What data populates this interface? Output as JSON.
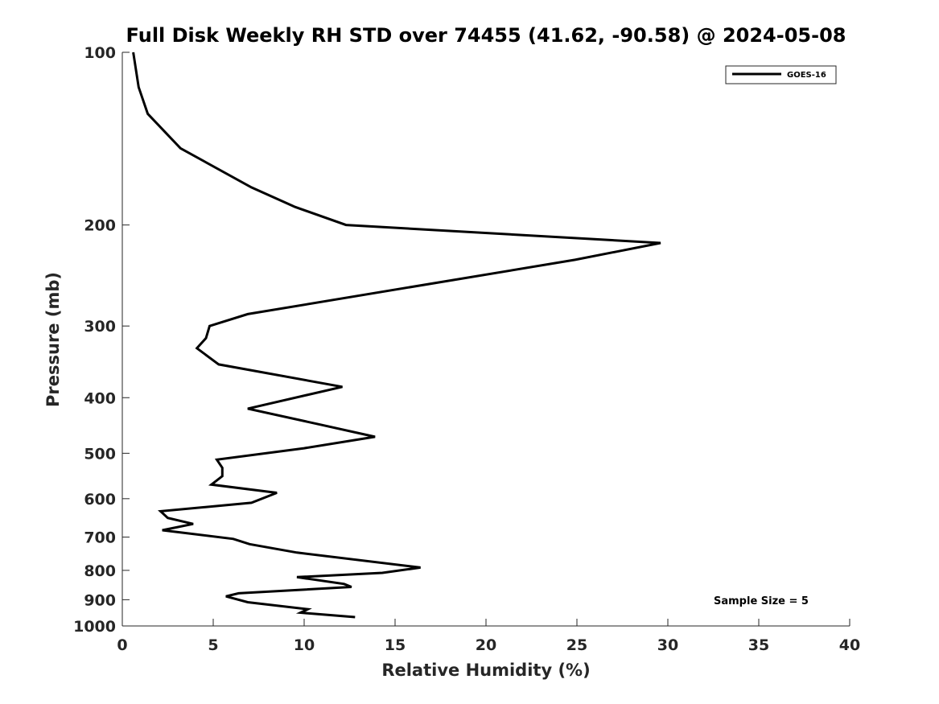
{
  "chart_data": {
    "type": "line",
    "title": "Full Disk Weekly RH STD over 74455 (41.62, -90.58) @ 2024-05-08",
    "xlabel": "Relative Humidity (%)",
    "ylabel": "Pressure (mb)",
    "xlim": [
      0,
      40
    ],
    "ylim": [
      1000,
      100
    ],
    "yscale": "log",
    "x_ticks": [
      "0",
      "5",
      "10",
      "15",
      "20",
      "25",
      "30",
      "35",
      "40"
    ],
    "y_ticks": [
      "100",
      "200",
      "300",
      "400",
      "500",
      "600",
      "700",
      "800",
      "900",
      "1000"
    ],
    "grid": false,
    "legend_position": "top-right",
    "annotation": "Sample Size = 5",
    "series": [
      {
        "name": "GOES-16",
        "color": "#000000",
        "points": [
          [
            0.6,
            100
          ],
          [
            0.9,
            115
          ],
          [
            1.4,
            128
          ],
          [
            3.2,
            147
          ],
          [
            7.1,
            172
          ],
          [
            9.5,
            186
          ],
          [
            12.3,
            200
          ],
          [
            29.6,
            215
          ],
          [
            24.9,
            230
          ],
          [
            6.9,
            286
          ],
          [
            4.8,
            300
          ],
          [
            4.6,
            315
          ],
          [
            4.1,
            328
          ],
          [
            5.3,
            350
          ],
          [
            12.1,
            383
          ],
          [
            6.9,
            418
          ],
          [
            10.8,
            445
          ],
          [
            13.9,
            468
          ],
          [
            10.0,
            490
          ],
          [
            5.2,
            513
          ],
          [
            5.5,
            530
          ],
          [
            5.5,
            548
          ],
          [
            4.9,
            567
          ],
          [
            8.5,
            586
          ],
          [
            7.1,
            610
          ],
          [
            2.1,
            631
          ],
          [
            2.5,
            648
          ],
          [
            3.9,
            664
          ],
          [
            2.2,
            681
          ],
          [
            6.1,
            705
          ],
          [
            7.0,
            720
          ],
          [
            9.6,
            745
          ],
          [
            16.4,
            791
          ],
          [
            14.3,
            808
          ],
          [
            9.6,
            822
          ],
          [
            12.2,
            845
          ],
          [
            12.6,
            855
          ],
          [
            6.4,
            877
          ],
          [
            5.7,
            888
          ],
          [
            6.9,
            909
          ],
          [
            10.2,
            935
          ],
          [
            9.8,
            948
          ],
          [
            12.8,
            965
          ]
        ]
      }
    ]
  }
}
